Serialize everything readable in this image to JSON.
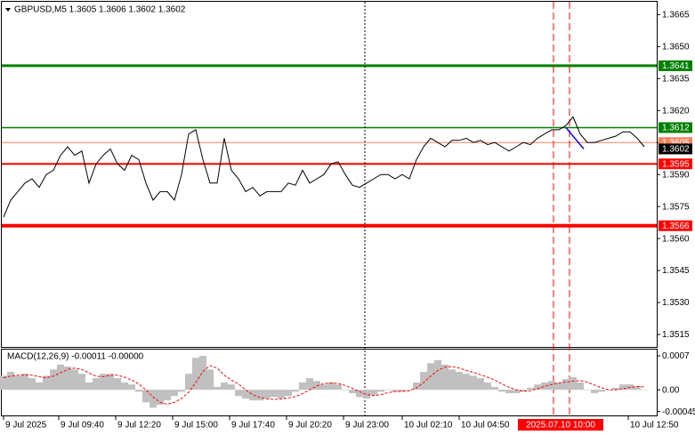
{
  "chart_data": [
    {
      "type": "line",
      "title": "GBPUSD,M5  1.3605 1.3606 1.3602 1.3602",
      "color": "#000000",
      "x": [
        1,
        5,
        9,
        13,
        17,
        21,
        25,
        29,
        33,
        37,
        41,
        45,
        49,
        53,
        57,
        61,
        65,
        69,
        73,
        77,
        81,
        85,
        89,
        93,
        97,
        101,
        105,
        109,
        113,
        117,
        121,
        125,
        129,
        133,
        137,
        141,
        145,
        149,
        153,
        157,
        161,
        165,
        169,
        173,
        177,
        181,
        185,
        189,
        193,
        197,
        201,
        205,
        209,
        213,
        217,
        221,
        225,
        229,
        233,
        237,
        241,
        245,
        249,
        253,
        257,
        261,
        265,
        269,
        273,
        277,
        281,
        285,
        289,
        293,
        297,
        301,
        305,
        309,
        313,
        317,
        321,
        325,
        329,
        333,
        337,
        341,
        345,
        349,
        353,
        357,
        361
      ],
      "values": [
        1.357,
        1.3578,
        1.3582,
        1.3586,
        1.3588,
        1.3584,
        1.359,
        1.3592,
        1.3599,
        1.3603,
        1.3599,
        1.3601,
        1.3586,
        1.3595,
        1.3599,
        1.3602,
        1.3595,
        1.3592,
        1.3599,
        1.3597,
        1.3586,
        1.3578,
        1.3582,
        1.3582,
        1.3578,
        1.359,
        1.3609,
        1.3611,
        1.3597,
        1.3586,
        1.3586,
        1.3607,
        1.3592,
        1.3588,
        1.3582,
        1.3584,
        1.358,
        1.3582,
        1.3582,
        1.3582,
        1.3586,
        1.3585,
        1.3592,
        1.3586,
        1.3588,
        1.359,
        1.3595,
        1.3596,
        1.359,
        1.3585,
        1.3584,
        1.3586,
        1.3588,
        1.359,
        1.359,
        1.3588,
        1.359,
        1.3588,
        1.3597,
        1.3603,
        1.3607,
        1.3605,
        1.3603,
        1.3606,
        1.3606,
        1.3607,
        1.3605,
        1.3606,
        1.3604,
        1.3605,
        1.3603,
        1.3601,
        1.3603,
        1.3605,
        1.3604,
        1.3607,
        1.3609,
        1.3611,
        1.3611,
        1.3613,
        1.3617,
        1.3609,
        1.3605,
        1.3605,
        1.3606,
        1.3607,
        1.3608,
        1.361,
        1.361,
        1.3607,
        1.3603
      ],
      "xlim": [
        0,
        368
      ],
      "ylim": [
        1.351,
        1.3671
      ],
      "yticks": [
        1.3665,
        {
          "value": 1.365,
          "label": "1.3650"
        },
        1.3635,
        {
          "value": 1.362,
          "label": "1.3620"
        },
        1.3605,
        {
          "value": 1.359,
          "label": "1.3590"
        },
        1.3575,
        {
          "value": 1.356,
          "label": "1.3560"
        },
        1.3545,
        {
          "value": 1.353,
          "label": "1.3530"
        },
        1.3515
      ],
      "xticks": [
        {
          "value": 1,
          "label": "9 Jul 2025"
        },
        {
          "value": 32,
          "label": "9 Jul 09:40"
        },
        {
          "value": 64,
          "label": "9 Jul 12:20"
        },
        {
          "value": 96,
          "label": "9 Jul 15:00"
        },
        {
          "value": 128,
          "label": "9 Jul 17:40"
        },
        {
          "value": 160,
          "label": "9 Jul 20:20"
        },
        {
          "value": 192,
          "label": "9 Jul 23:00"
        },
        {
          "value": 225,
          "label": "10 Jul 02:10"
        },
        {
          "value": 257,
          "label": "10 Jul 04:50"
        },
        {
          "value": 352,
          "label": "10 Jul 12:50"
        }
      ],
      "levels": [
        {
          "value": 1.3641,
          "color": "#008000"
        },
        {
          "value": 1.3612,
          "color": "#008000"
        },
        {
          "value": 1.3605,
          "color": "#f4845f"
        },
        {
          "value": 1.3595,
          "color": "#ff0000"
        },
        {
          "value": 1.3566,
          "color": "#ff0000"
        }
      ],
      "current_price": 1.3602,
      "trend_line": {
        "x": [
          317,
          327
        ],
        "values": [
          1.3612,
          1.3602
        ],
        "color": "#0000ff"
      },
      "vlines": [
        {
          "x": 204,
          "color": "#000000"
        },
        {
          "x": 310,
          "color": "#ff0000"
        },
        {
          "x": 319,
          "color": "#ff0000"
        }
      ],
      "time_marker": {
        "x": 319,
        "label": "2025.07.10 10:00",
        "color": "#ff0000"
      }
    },
    {
      "type": "bar",
      "title": "MACD(12,26,9) -0.00011 -0.00000",
      "color": "#c0c0c0",
      "signal_color": "#ff0000",
      "x": [
        1,
        5,
        9,
        13,
        17,
        21,
        25,
        29,
        33,
        37,
        41,
        45,
        49,
        53,
        57,
        61,
        65,
        69,
        73,
        77,
        81,
        85,
        89,
        93,
        97,
        101,
        105,
        109,
        113,
        117,
        121,
        125,
        129,
        133,
        137,
        141,
        145,
        149,
        153,
        157,
        161,
        165,
        169,
        173,
        177,
        181,
        185,
        189,
        193,
        197,
        201,
        205,
        209,
        213,
        217,
        221,
        225,
        229,
        233,
        237,
        241,
        245,
        249,
        253,
        257,
        261,
        265,
        269,
        273,
        277,
        281,
        285,
        289,
        293,
        297,
        301,
        305,
        309,
        313,
        317,
        321,
        325,
        329,
        333,
        337,
        341,
        345,
        349,
        353,
        357,
        361
      ],
      "values": [
        0.00029,
        0.00037,
        0.00029,
        0.00033,
        0.00024,
        0.00015,
        0.00029,
        0.00042,
        0.00052,
        0.00048,
        0.00042,
        0.00033,
        0.00015,
        0.00024,
        0.00033,
        0.00033,
        0.00024,
        0.00015,
        0.00011,
        -4e-05,
        -0.00026,
        -0.00037,
        -0.00031,
        -0.00022,
        -0.00013,
        -4e-05,
        0.00033,
        0.00066,
        0.0007,
        0.00042,
        6e-05,
        0.00015,
        0.00011,
        -0.00013,
        -0.00018,
        -0.00022,
        -0.00022,
        -0.00018,
        -0.00015,
        -0.00018,
        -0.00013,
        -4e-05,
        0.00015,
        0.00024,
        0.00018,
        0.00011,
        0.00015,
        0.00011,
        0,
        -7e-05,
        -0.00015,
        -0.00018,
        -0.00011,
        -4e-05,
        0,
        -4e-05,
        -4e-05,
        0,
        0.00015,
        0.00037,
        0.00055,
        0.00061,
        0.00052,
        0.00042,
        0.00037,
        0.00033,
        0.00029,
        0.00024,
        0.00015,
        6e-05,
        -4e-05,
        -7e-05,
        -7e-05,
        -4e-05,
        4e-05,
        0.00011,
        0.00015,
        0.00018,
        0.00015,
        0.00022,
        0.00026,
        0.00015,
        0,
        -7e-05,
        -4e-05,
        0,
        4e-05,
        0.00011,
        0.00011,
        7e-05,
        0
      ],
      "signal": [
        0.00025,
        0.00028,
        0.0003,
        0.00031,
        0.0003,
        0.00027,
        0.00025,
        0.00028,
        0.00035,
        0.00042,
        0.00045,
        0.00042,
        0.00035,
        0.00028,
        0.00027,
        0.0003,
        0.0003,
        0.00026,
        0.0002,
        0.00012,
        0,
        -0.00015,
        -0.00026,
        -0.0003,
        -0.00026,
        -0.00018,
        -5e-05,
        0.00015,
        0.00038,
        0.0005,
        0.00045,
        0.0003,
        0.0002,
        0.00012,
        0,
        -0.0001,
        -0.00016,
        -0.00019,
        -0.0002,
        -0.00019,
        -0.00017,
        -0.00014,
        -8e-05,
        0,
        8e-05,
        0.00013,
        0.00014,
        0.00013,
        9e-05,
        3e-05,
        -4e-05,
        -0.0001,
        -0.00012,
        -0.0001,
        -6e-05,
        -4e-05,
        -3e-05,
        -2e-05,
        4e-05,
        0.00015,
        0.00028,
        0.0004,
        0.00047,
        0.00048,
        0.00045,
        0.0004,
        0.00036,
        0.00031,
        0.00026,
        0.0002,
        0.00012,
        5e-05,
        0,
        -3e-05,
        -2e-05,
        2e-05,
        7e-05,
        0.00011,
        0.00014,
        0.00016,
        0.00018,
        0.00019,
        0.00016,
        0.0001,
        4e-05,
        0,
        0,
        2e-05,
        5e-05,
        7e-05,
        6e-05
      ],
      "xlim": [
        0,
        368
      ],
      "ylim": [
        -0.00053,
        0.00083
      ],
      "yticks": [
        0.0007,
        {
          "value": 0,
          "label": "0.00"
        },
        -0.00045
      ]
    }
  ]
}
